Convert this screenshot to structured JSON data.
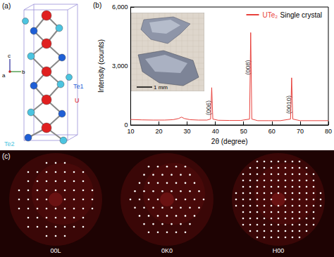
{
  "panel_labels": [
    "(a)",
    "(b)",
    "(c)"
  ],
  "structure": {
    "atom_labels": [
      {
        "text": "Te1",
        "color": "#1f5fd6"
      },
      {
        "text": "U",
        "color": "#e02020"
      },
      {
        "text": "Te2",
        "color": "#4cc4e0"
      }
    ],
    "axis_labels": [
      "c",
      "b",
      "a"
    ]
  },
  "chart_data": {
    "type": "line",
    "subtitle": "Single crystal",
    "xlabel": "2θ (degree)",
    "ylabel": "Intensity (counts)",
    "x": [
      10,
      14,
      18,
      22,
      25,
      27,
      28,
      29,
      31,
      34,
      37,
      38.3,
      38.7,
      39.1,
      41,
      45,
      49,
      52.1,
      52.5,
      52.9,
      55,
      59,
      63,
      66.6,
      67,
      67.4,
      70,
      74,
      78,
      80
    ],
    "series": [
      {
        "name": "UTe₂",
        "color": "#e8413c",
        "values": [
          280,
          260,
          250,
          250,
          270,
          330,
          400,
          330,
          270,
          250,
          250,
          300,
          1900,
          300,
          240,
          230,
          230,
          300,
          4700,
          300,
          220,
          220,
          220,
          300,
          2400,
          300,
          220,
          220,
          220,
          220
        ]
      }
    ],
    "xlim": [
      10,
      80
    ],
    "xticks": [
      10,
      20,
      30,
      40,
      50,
      60,
      70,
      80
    ],
    "ylim": [
      0,
      6000
    ],
    "yticks": [
      0,
      3000,
      6000
    ],
    "annotations": [
      {
        "text": "(006)",
        "x": 38.7,
        "y": 1250
      },
      {
        "text": "(008)",
        "x": 52.5,
        "y": 3300
      },
      {
        "text": "(0010)",
        "x": 67,
        "y": 1500
      }
    ],
    "inset": {
      "scale_label": "1 mm"
    },
    "legend": "upper right",
    "grid": false
  },
  "patterns": {
    "labels": [
      "00L",
      "0K0",
      "H00"
    ]
  }
}
